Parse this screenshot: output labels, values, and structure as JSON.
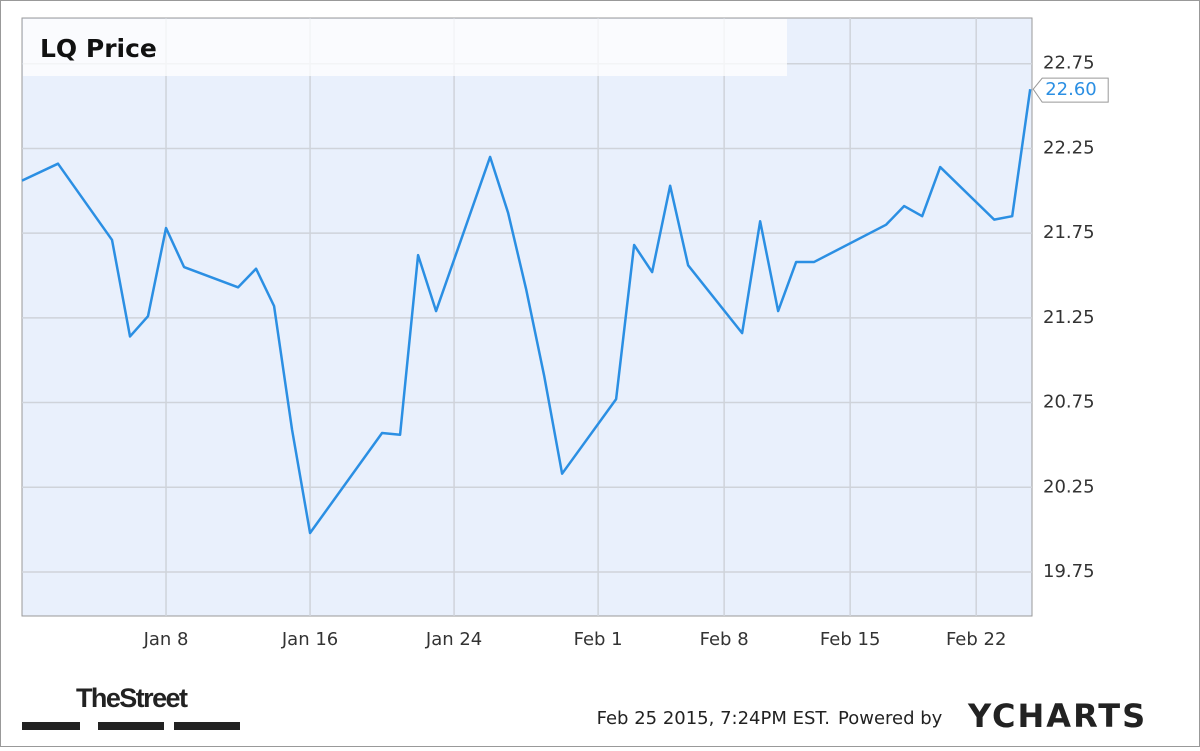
{
  "chart_data": {
    "type": "line",
    "title": "LQ Price",
    "x": [
      0,
      2,
      5,
      6,
      7,
      8,
      9,
      12,
      13,
      14,
      15,
      16,
      20,
      21,
      22,
      23,
      26,
      27,
      28,
      29,
      30,
      33,
      34,
      35,
      36,
      37,
      40,
      41,
      42,
      43,
      44,
      48,
      49,
      50,
      51,
      54,
      55,
      56
    ],
    "series": [
      {
        "name": "LQ Price",
        "color": "#2b8fe3",
        "values": [
          22.06,
          22.16,
          21.71,
          21.14,
          21.26,
          21.78,
          21.55,
          21.43,
          21.54,
          21.32,
          20.59,
          19.98,
          20.57,
          20.56,
          21.62,
          21.29,
          22.2,
          21.87,
          21.42,
          20.91,
          20.33,
          20.77,
          21.68,
          21.52,
          22.03,
          21.56,
          21.16,
          21.82,
          21.29,
          21.58,
          21.58,
          21.8,
          21.91,
          21.85,
          22.14,
          21.83,
          21.85,
          22.6
        ],
        "value_labels": [
          null,
          null,
          null,
          null,
          null,
          null,
          null,
          null,
          null,
          null,
          null,
          null,
          null,
          null,
          null,
          null,
          null,
          null,
          null,
          null,
          null,
          null,
          null,
          null,
          null,
          null,
          null,
          null,
          null,
          null,
          null,
          null,
          null,
          null,
          null,
          null,
          null,
          "22.60"
        ]
      }
    ],
    "xlim": [
      0,
      56.1
    ],
    "xticks": [
      {
        "value": 8,
        "label": "Jan 8"
      },
      {
        "value": 16,
        "label": "Jan 16"
      },
      {
        "value": 24,
        "label": "Jan 24"
      },
      {
        "value": 32,
        "label": "Feb 1"
      },
      {
        "value": 39,
        "label": "Feb 8"
      },
      {
        "value": 46,
        "label": "Feb 15"
      },
      {
        "value": 53,
        "label": "Feb 22"
      }
    ],
    "ylim": [
      19.49,
      23.02
    ],
    "yticks": [
      19.75,
      20.25,
      20.75,
      21.25,
      21.75,
      22.25,
      22.75
    ],
    "grid": true,
    "source": "TheStreet",
    "timestamp": "Feb 25 2015, 7:24PM EST.",
    "powered_by": "Powered by",
    "brand": "YCHARTS"
  }
}
